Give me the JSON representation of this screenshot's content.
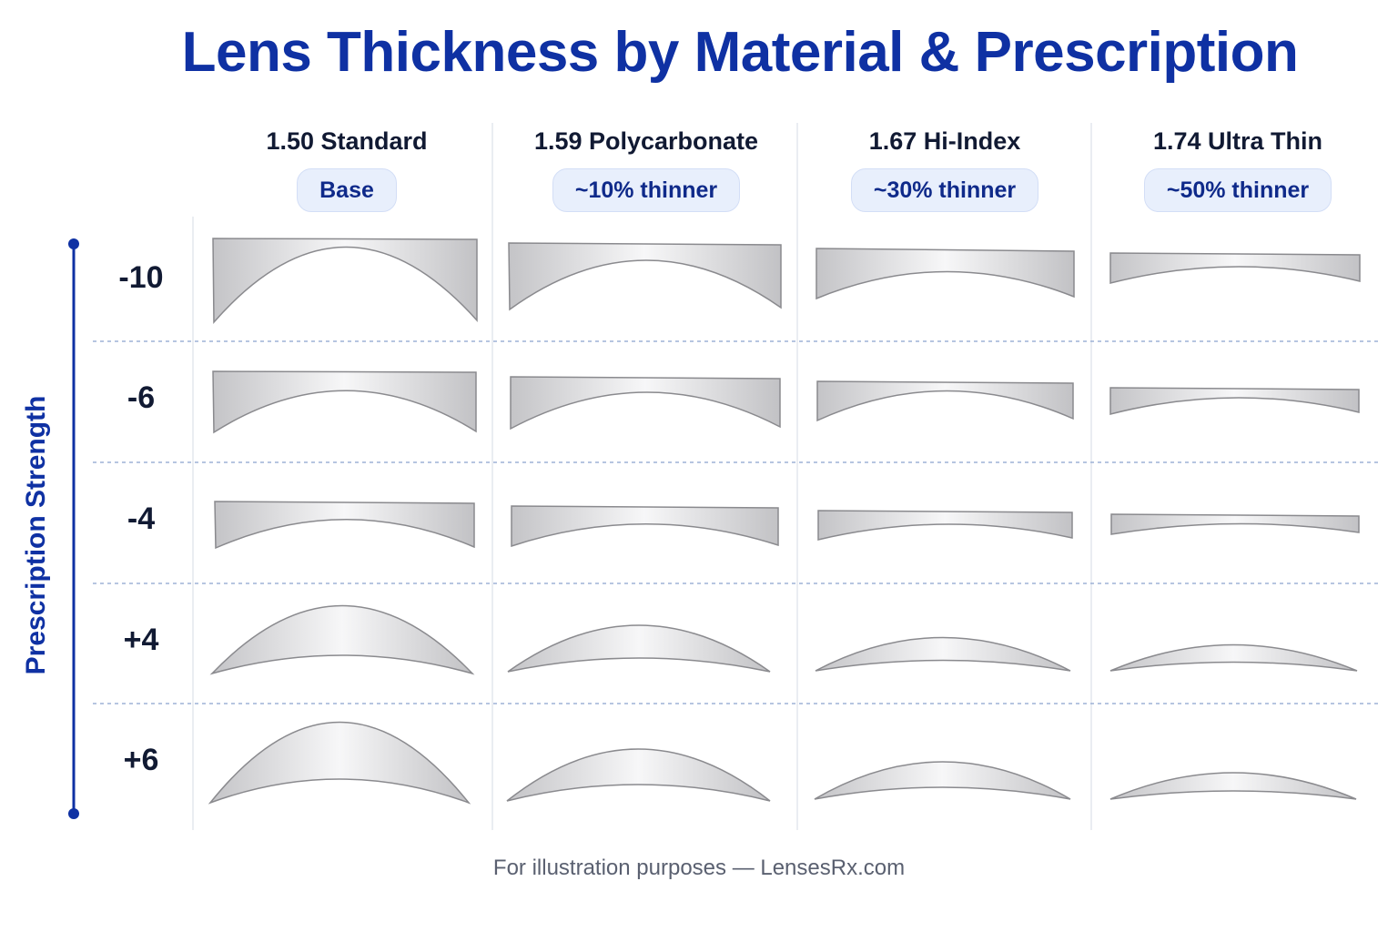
{
  "title": "Lens Thickness by Material & Prescription",
  "columns": [
    {
      "name": "1.50 Standard",
      "badge": "Base"
    },
    {
      "name": "1.59 Polycarbonate",
      "badge": "~10% thinner"
    },
    {
      "name": "1.67 Hi-Index",
      "badge": "~30% thinner"
    },
    {
      "name": "1.74 Ultra Thin",
      "badge": "~50% thinner"
    }
  ],
  "rows": [
    "-10",
    "-6",
    "-4",
    "+4",
    "+6"
  ],
  "axis_title": "Prescription Strength",
  "footer": "For illustration purposes — LensesRx.com",
  "colors": {
    "title": "#0f31a3",
    "accent": "#0f31a3",
    "badge_bg": "#e8effc",
    "lens_fill": "#d9d9db",
    "lens_stroke": "#8a8a8e"
  }
}
